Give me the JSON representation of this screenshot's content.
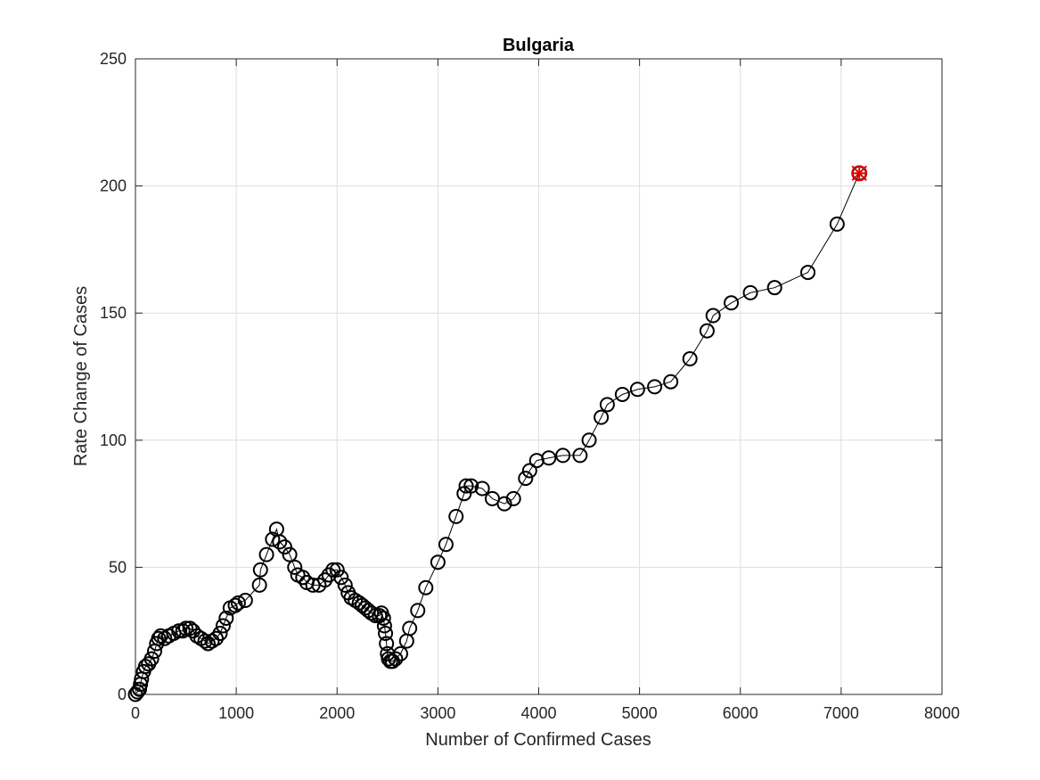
{
  "chart_data": {
    "type": "line",
    "title": "Bulgaria",
    "xlabel": "Number of Confirmed Cases",
    "ylabel": "Rate Change of Cases",
    "xlim": [
      0,
      8000
    ],
    "ylim": [
      0,
      250
    ],
    "xticks": [
      0,
      1000,
      2000,
      3000,
      4000,
      5000,
      6000,
      7000,
      8000
    ],
    "yticks": [
      0,
      50,
      100,
      150,
      200,
      250
    ],
    "xtick_labels": [
      "0",
      "1000",
      "2000",
      "3000",
      "4000",
      "5000",
      "6000",
      "7000",
      "8000"
    ],
    "ytick_labels": [
      "0",
      "50",
      "100",
      "150",
      "200",
      "250"
    ],
    "grid": true,
    "series": [
      {
        "marker": "circle",
        "color": "#000000",
        "points": [
          [
            0,
            0
          ],
          [
            20,
            1
          ],
          [
            40,
            2
          ],
          [
            50,
            4
          ],
          [
            60,
            6
          ],
          [
            80,
            9
          ],
          [
            100,
            11
          ],
          [
            130,
            12
          ],
          [
            160,
            14
          ],
          [
            190,
            17
          ],
          [
            210,
            20
          ],
          [
            230,
            22
          ],
          [
            250,
            23
          ],
          [
            290,
            22
          ],
          [
            330,
            23
          ],
          [
            380,
            24
          ],
          [
            430,
            25
          ],
          [
            470,
            25
          ],
          [
            500,
            26
          ],
          [
            540,
            26
          ],
          [
            570,
            25
          ],
          [
            610,
            23
          ],
          [
            650,
            22
          ],
          [
            690,
            21
          ],
          [
            720,
            20
          ],
          [
            760,
            21
          ],
          [
            800,
            22
          ],
          [
            840,
            24
          ],
          [
            870,
            27
          ],
          [
            900,
            30
          ],
          [
            940,
            34
          ],
          [
            990,
            35
          ],
          [
            1020,
            36
          ],
          [
            1090,
            37
          ],
          [
            1230,
            43
          ],
          [
            1240,
            49
          ],
          [
            1300,
            55
          ],
          [
            1360,
            61
          ],
          [
            1400,
            65
          ],
          [
            1430,
            60
          ],
          [
            1480,
            58
          ],
          [
            1530,
            55
          ],
          [
            1580,
            50
          ],
          [
            1610,
            47
          ],
          [
            1660,
            46
          ],
          [
            1700,
            44
          ],
          [
            1760,
            43
          ],
          [
            1820,
            43
          ],
          [
            1880,
            45
          ],
          [
            1920,
            47
          ],
          [
            1960,
            49
          ],
          [
            2000,
            49
          ],
          [
            2040,
            46
          ],
          [
            2080,
            43
          ],
          [
            2110,
            40
          ],
          [
            2140,
            38
          ],
          [
            2180,
            37
          ],
          [
            2220,
            36
          ],
          [
            2250,
            35
          ],
          [
            2280,
            34
          ],
          [
            2310,
            33
          ],
          [
            2340,
            32
          ],
          [
            2380,
            31
          ],
          [
            2420,
            31
          ],
          [
            2440,
            32
          ],
          [
            2460,
            30
          ],
          [
            2470,
            27
          ],
          [
            2480,
            24
          ],
          [
            2490,
            20
          ],
          [
            2500,
            16
          ],
          [
            2510,
            14
          ],
          [
            2530,
            13
          ],
          [
            2550,
            13
          ],
          [
            2580,
            14
          ],
          [
            2630,
            16
          ],
          [
            2690,
            21
          ],
          [
            2720,
            26
          ],
          [
            2800,
            33
          ],
          [
            2880,
            42
          ],
          [
            3000,
            52
          ],
          [
            3080,
            59
          ],
          [
            3180,
            70
          ],
          [
            3260,
            79
          ],
          [
            3280,
            82
          ],
          [
            3330,
            82
          ],
          [
            3440,
            81
          ],
          [
            3540,
            77
          ],
          [
            3660,
            75
          ],
          [
            3750,
            77
          ],
          [
            3870,
            85
          ],
          [
            3910,
            88
          ],
          [
            3980,
            92
          ],
          [
            4100,
            93
          ],
          [
            4240,
            94
          ],
          [
            4410,
            94
          ],
          [
            4500,
            100
          ],
          [
            4620,
            109
          ],
          [
            4680,
            114
          ],
          [
            4830,
            118
          ],
          [
            4980,
            120
          ],
          [
            5150,
            121
          ],
          [
            5310,
            123
          ],
          [
            5500,
            132
          ],
          [
            5670,
            143
          ],
          [
            5730,
            149
          ],
          [
            5910,
            154
          ],
          [
            6100,
            158
          ],
          [
            6340,
            160
          ],
          [
            6670,
            166
          ],
          [
            6960,
            185
          ],
          [
            7180,
            205
          ]
        ]
      }
    ],
    "highlight_point": {
      "x": 7180,
      "y": 205,
      "color": "#e00000",
      "markers": [
        "circle",
        "x",
        "asterisk"
      ]
    }
  }
}
